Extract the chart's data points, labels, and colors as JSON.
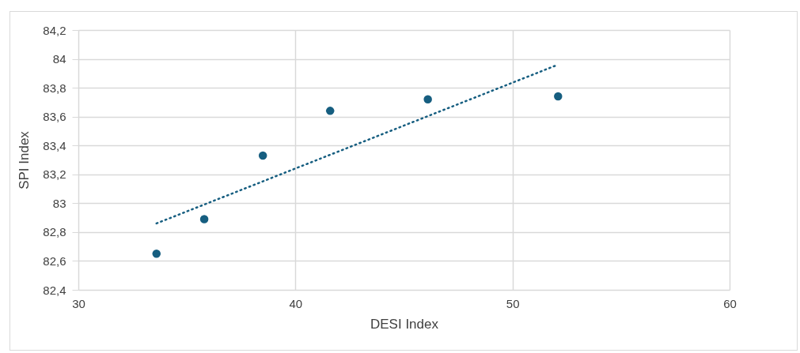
{
  "chart_data": {
    "type": "scatter",
    "xlabel": "DESI Index",
    "ylabel": "SPI Index",
    "xlim": [
      30,
      60
    ],
    "xticks": [
      30,
      40,
      50,
      60
    ],
    "ylim": [
      82.4,
      84.2
    ],
    "yticks": [
      {
        "value": 82.4,
        "label": "82,4"
      },
      {
        "value": 82.6,
        "label": "82,6"
      },
      {
        "value": 82.8,
        "label": "82,8"
      },
      {
        "value": 83,
        "label": "83"
      },
      {
        "value": 83.2,
        "label": "83,2"
      },
      {
        "value": 83.4,
        "label": "83,4"
      },
      {
        "value": 83.6,
        "label": "83,6"
      },
      {
        "value": 83.8,
        "label": "83,8"
      },
      {
        "value": 84,
        "label": "84"
      },
      {
        "value": 84.2,
        "label": "84,2"
      }
    ],
    "grid": true,
    "marker": "circle",
    "series": [
      {
        "color": "#165e80",
        "x": [
          33.6,
          35.8,
          38.5,
          41.6,
          46.1,
          52.1
        ],
        "values": [
          82.65,
          82.89,
          83.33,
          83.64,
          83.72,
          83.74
        ]
      },
      {
        "type": "line",
        "line_style": "dotted",
        "marker": "none",
        "color": "#165e80",
        "x": [
          33.6,
          52.1
        ],
        "values": [
          82.86,
          83.96
        ]
      }
    ]
  }
}
